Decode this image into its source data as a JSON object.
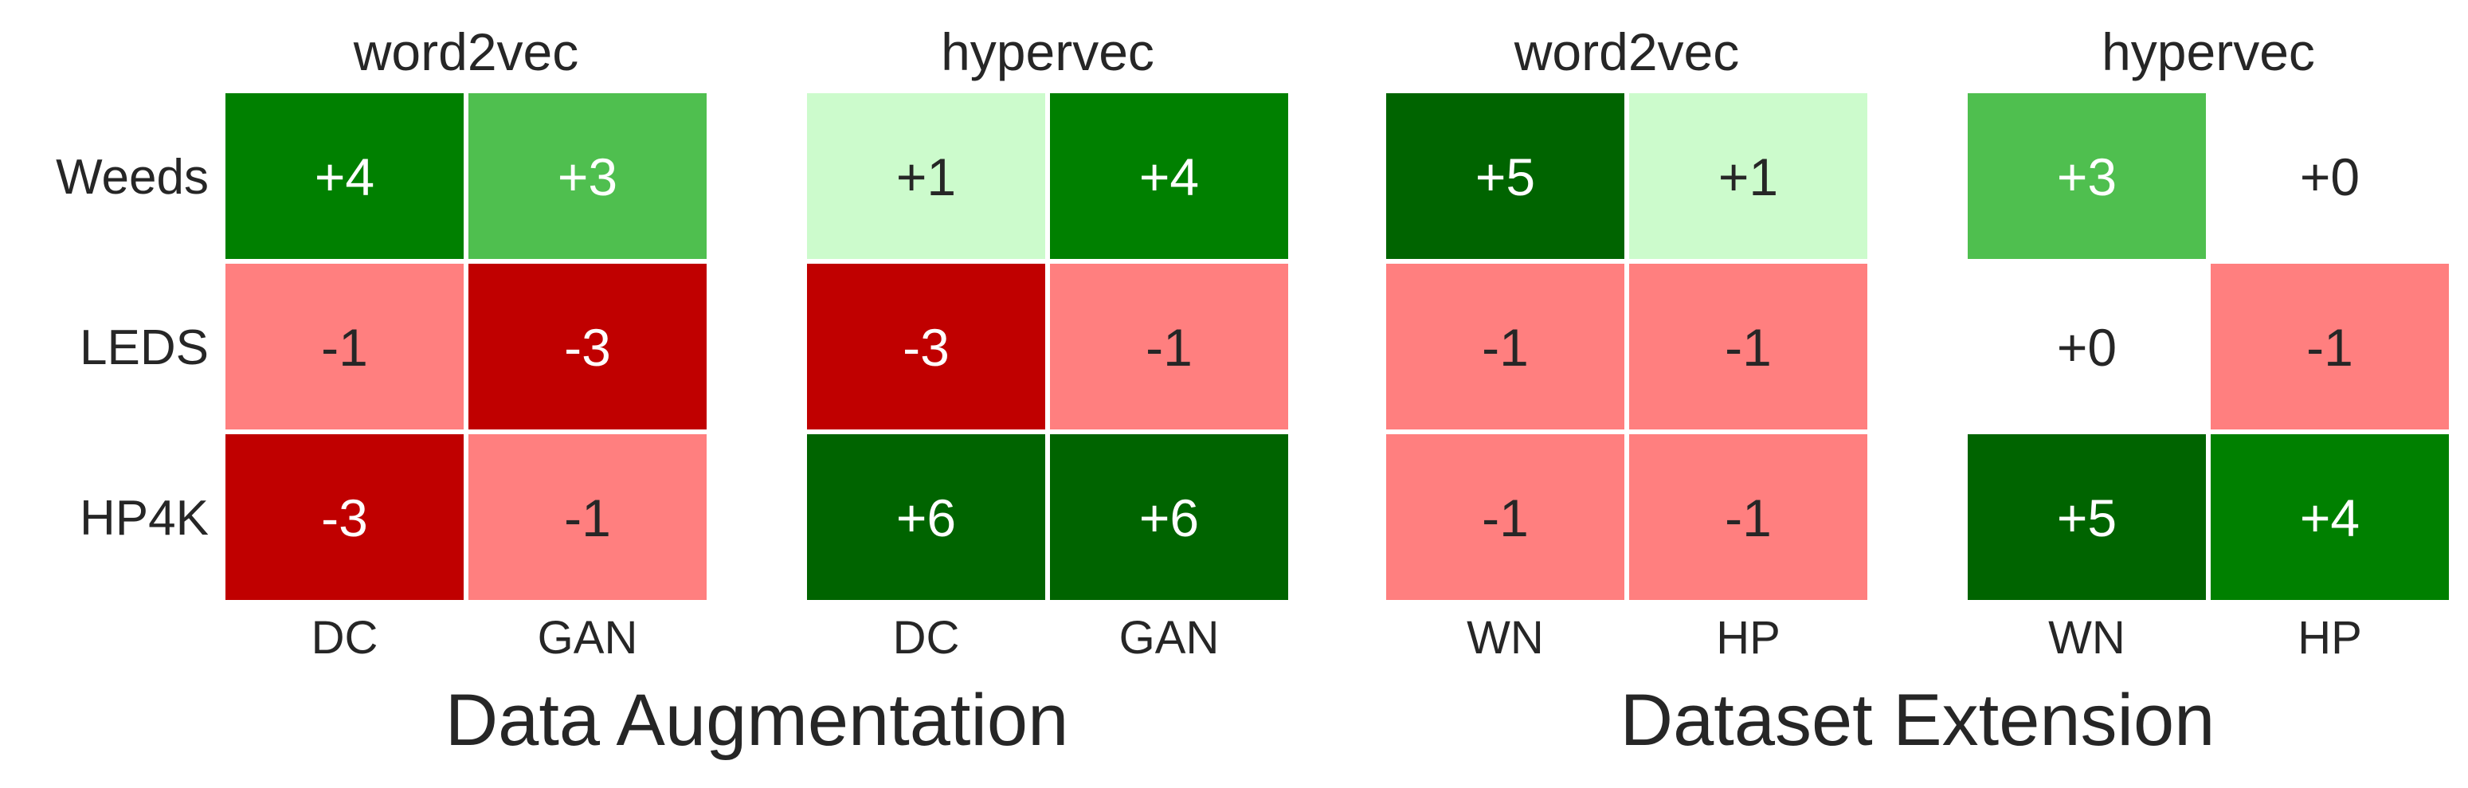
{
  "chart_data": [
    {
      "type": "heatmap",
      "title": "word2vec",
      "group": "Data Augmentation",
      "rows": [
        "Weeds",
        "LEDS",
        "HP4K"
      ],
      "columns": [
        "DC",
        "GAN"
      ],
      "values": [
        [
          4,
          3
        ],
        [
          -1,
          -3
        ],
        [
          -3,
          -1
        ]
      ],
      "labels": [
        [
          "+4",
          "+3"
        ],
        [
          "-1",
          "-3"
        ],
        [
          "-3",
          "-1"
        ]
      ]
    },
    {
      "type": "heatmap",
      "title": "hypervec",
      "group": "Data Augmentation",
      "rows": [
        "Weeds",
        "LEDS",
        "HP4K"
      ],
      "columns": [
        "DC",
        "GAN"
      ],
      "values": [
        [
          1,
          4
        ],
        [
          -3,
          -1
        ],
        [
          6,
          6
        ]
      ],
      "labels": [
        [
          "+1",
          "+4"
        ],
        [
          "-3",
          "-1"
        ],
        [
          "+6",
          "+6"
        ]
      ]
    },
    {
      "type": "heatmap",
      "title": "word2vec",
      "group": "Dataset Extension",
      "rows": [
        "Weeds",
        "LEDS",
        "HP4K"
      ],
      "columns": [
        "WN",
        "HP"
      ],
      "values": [
        [
          5,
          1
        ],
        [
          -1,
          -1
        ],
        [
          -1,
          -1
        ]
      ],
      "labels": [
        [
          "+5",
          "+1"
        ],
        [
          "-1",
          "-1"
        ],
        [
          "-1",
          "-1"
        ]
      ]
    },
    {
      "type": "heatmap",
      "title": "hypervec",
      "group": "Dataset Extension",
      "rows": [
        "Weeds",
        "LEDS",
        "HP4K"
      ],
      "columns": [
        "WN",
        "HP"
      ],
      "values": [
        [
          3,
          0
        ],
        [
          0,
          -1
        ],
        [
          5,
          4
        ]
      ],
      "labels": [
        [
          "+3",
          "+0"
        ],
        [
          "+0",
          "-1"
        ],
        [
          "+5",
          "+4"
        ]
      ]
    }
  ],
  "groups": [
    "Data Augmentation",
    "Dataset Extension"
  ],
  "colors": {
    "-3": "#c00000",
    "-1": "#ff7f7f",
    "0": "#ffffff",
    "1": "#ccfbcc",
    "3": "#4fbf4f",
    "4": "#008000",
    "5": "#006400",
    "6": "#006400",
    "text_on_color": "#ffffff",
    "text_on_light": "#262626",
    "label_text": "#262626"
  }
}
